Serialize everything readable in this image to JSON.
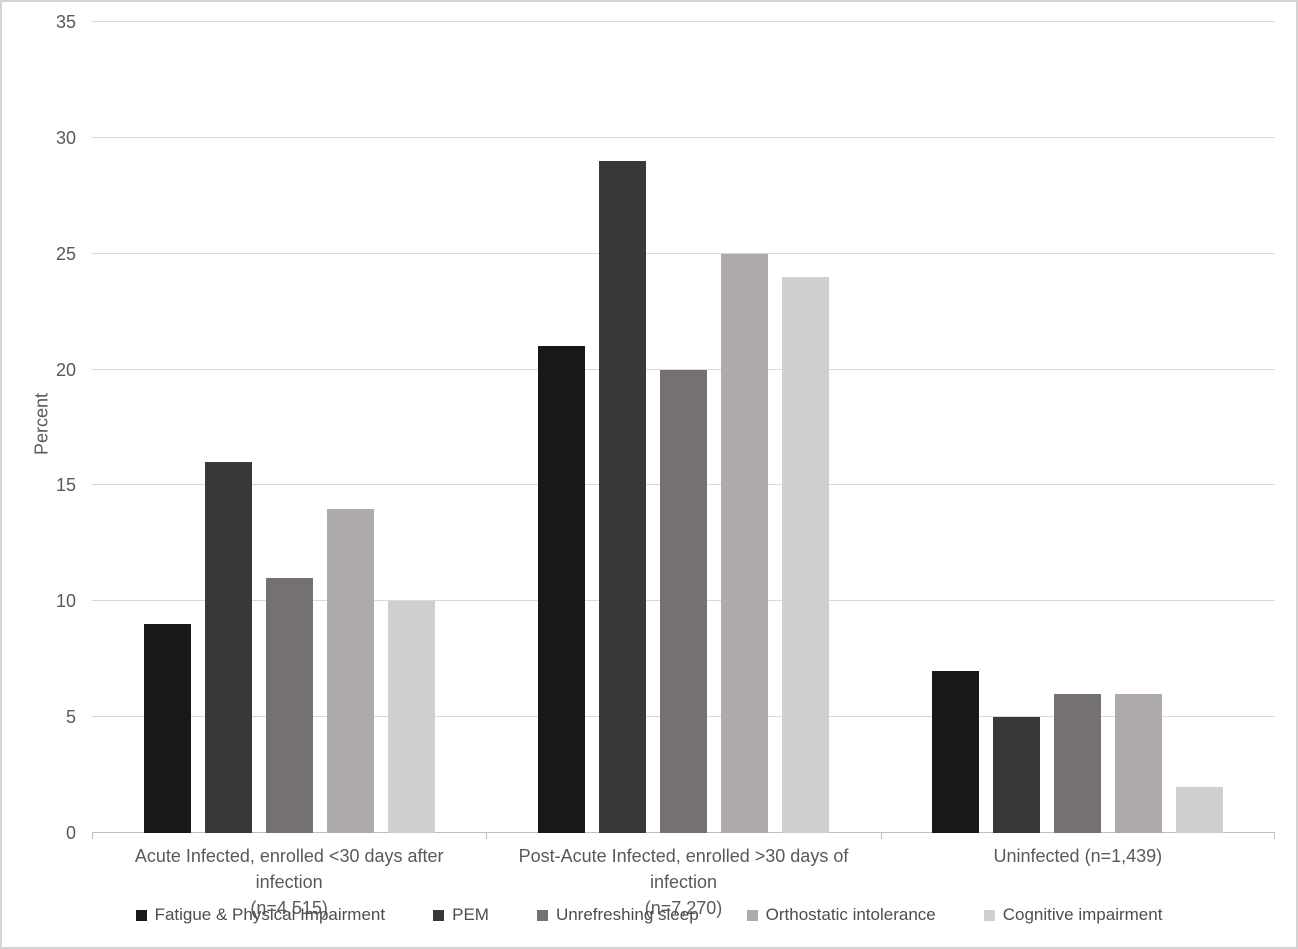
{
  "figure": {
    "background": "#ffffff",
    "border_color": "#d4d4d4"
  },
  "chart_data": {
    "type": "bar",
    "title": "",
    "xlabel": "",
    "ylabel": "Percent",
    "ylim": [
      0,
      35
    ],
    "yticks": [
      0,
      5,
      10,
      15,
      20,
      25,
      30,
      35
    ],
    "grid": true,
    "legend_position": "bottom",
    "gridline_color": "#d9d9d9",
    "axis_line_color": "#bfbfbf",
    "axis_text_color": "#595959",
    "categories": [
      {
        "line1": "Acute Infected, enrolled <30 days after infection",
        "line2": "(n=4,515)"
      },
      {
        "line1": "Post-Acute Infected, enrolled >30 days of infection",
        "line2": "(n=7,270)"
      },
      {
        "line1": "Uninfected (n=1,439)",
        "line2": ""
      }
    ],
    "series": [
      {
        "name": "Fatigue & Physical Impairment",
        "color": "#181818",
        "values": [
          9,
          21,
          7
        ]
      },
      {
        "name": "PEM",
        "color": "#3b3838",
        "values": [
          16,
          29,
          5
        ]
      },
      {
        "name": "Unrefreshing sleep",
        "color": "#767171",
        "values": [
          11,
          20,
          6
        ]
      },
      {
        "name": "Orthostatic intolerance",
        "color": "#aeaaaa",
        "values": [
          14,
          25,
          6
        ]
      },
      {
        "name": "Cognitive impairment",
        "color": "#d0cece",
        "values": [
          10,
          24,
          2
        ]
      }
    ]
  }
}
